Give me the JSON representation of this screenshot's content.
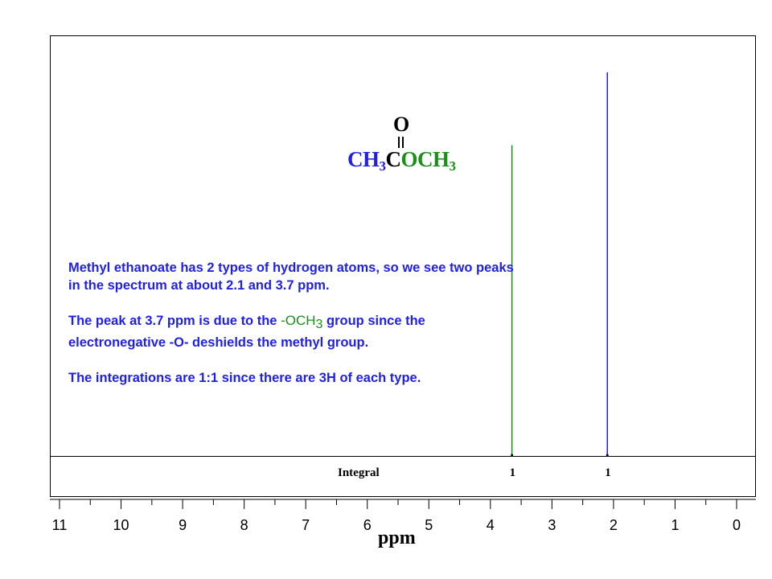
{
  "molecule": {
    "o_label": "O",
    "parts": [
      {
        "text": "CH",
        "sub": "3",
        "color": "#1f1fe6"
      },
      {
        "text": "C",
        "sub": "",
        "color": "#000000"
      },
      {
        "text": "OCH",
        "sub": "3",
        "color": "#1a8f1a"
      }
    ]
  },
  "notes": {
    "p1": "Methyl ethanoate has 2 types of hydrogen atoms, so we see two peaks in the spectrum at about 2.1 and 3.7 ppm.",
    "p2_before": "The peak at 3.7 ppm is due to the ",
    "p2_group": "-OCH",
    "p2_group_sub": "3",
    "p2_after": " group since the electronegative -O- deshields the methyl group.",
    "p3": "The integrations are 1:1 since there are 3H of each type."
  },
  "chart_data": {
    "type": "line",
    "xlabel": "ppm",
    "xlim": [
      11,
      0
    ],
    "x_reversed": true,
    "grid": false,
    "x_ticks": [
      "11",
      "10",
      "9",
      "8",
      "7",
      "6",
      "5",
      "4",
      "3",
      "2",
      "1",
      "0"
    ],
    "peaks": [
      {
        "x": 3.65,
        "relative_height": 0.81,
        "color": "#1a8f1a",
        "integral": "1"
      },
      {
        "x": 2.1,
        "relative_height": 1.0,
        "color": "#1f1fe6",
        "integral": "1"
      }
    ],
    "integral_label": "Integral"
  }
}
